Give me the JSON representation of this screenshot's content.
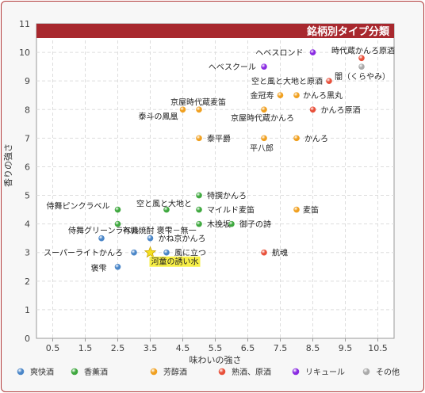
{
  "chart_data": {
    "type": "scatter",
    "title": "銘柄別タイプ分類",
    "xlabel": "味わいの強さ",
    "ylabel": "香りの強さ",
    "xlim": [
      0,
      11
    ],
    "ylim": [
      0,
      11
    ],
    "x_ticks": [
      "0.5",
      "1.5",
      "2.5",
      "3.5",
      "4.5",
      "5.5",
      "6.5",
      "7.5",
      "8.5",
      "9.5",
      "10.5"
    ],
    "y_ticks": [
      "0",
      "1",
      "2",
      "3",
      "4",
      "5",
      "6",
      "7",
      "8",
      "9",
      "10",
      "11"
    ],
    "grid": true,
    "legend_position": "bottom",
    "series": [
      {
        "name": "爽快酒",
        "color": "#4a86c8",
        "points": [
          {
            "x": 2.5,
            "y": 2.5,
            "label": "褒雫"
          },
          {
            "x": 3.0,
            "y": 3.0,
            "label": "スーパーライトかんろ"
          },
          {
            "x": 2.0,
            "y": 3.5,
            "label": "侍舞グリーンラベル"
          },
          {
            "x": 3.5,
            "y": 3.5,
            "label": "かね京かんろ"
          },
          {
            "x": 4.0,
            "y": 3.0,
            "label": "風に立つ"
          }
        ]
      },
      {
        "name": "香薫酒",
        "color": "#3fa83f",
        "points": [
          {
            "x": 2.5,
            "y": 4.5,
            "label": "侍舞ピンクラベル"
          },
          {
            "x": 2.5,
            "y": 4.0,
            "label": "有機焼酎 褒雫－無一"
          },
          {
            "x": 4.0,
            "y": 4.5,
            "label": "空と風と大地と"
          },
          {
            "x": 5.0,
            "y": 5.0,
            "label": "特撰かんろ"
          },
          {
            "x": 5.0,
            "y": 4.5,
            "label": "マイルド麦笛"
          },
          {
            "x": 5.0,
            "y": 4.0,
            "label": "木挽坂"
          },
          {
            "x": 6.0,
            "y": 4.0,
            "label": "御子の詩"
          }
        ]
      },
      {
        "name": "芳醇酒",
        "color": "#f0a020",
        "points": [
          {
            "x": 4.5,
            "y": 8.0,
            "label": "泰斗の鳳凰"
          },
          {
            "x": 5.0,
            "y": 8.0,
            "label": "京屋時代蔵麦笛"
          },
          {
            "x": 7.0,
            "y": 8.0,
            "label": "京屋時代蔵かんろ"
          },
          {
            "x": 7.5,
            "y": 8.5,
            "label": "金冠寿"
          },
          {
            "x": 8.0,
            "y": 8.5,
            "label": "かんろ黒丸"
          },
          {
            "x": 5.0,
            "y": 7.0,
            "label": "泰平爵"
          },
          {
            "x": 7.0,
            "y": 7.0,
            "label": "平八郎"
          },
          {
            "x": 8.0,
            "y": 7.0,
            "label": "かんろ"
          },
          {
            "x": 8.0,
            "y": 4.5,
            "label": "麦笛"
          }
        ]
      },
      {
        "name": "熟酒、原酒",
        "color": "#e8503a",
        "points": [
          {
            "x": 10.0,
            "y": 9.8,
            "label": "時代蔵かんろ原酒"
          },
          {
            "x": 9.0,
            "y": 9.0,
            "label": "空と風と大地と原酒"
          },
          {
            "x": 8.5,
            "y": 8.0,
            "label": "かんろ原酒"
          },
          {
            "x": 7.0,
            "y": 3.0,
            "label": "航魂"
          }
        ]
      },
      {
        "name": "リキュール",
        "color": "#8a2be2",
        "points": [
          {
            "x": 8.5,
            "y": 10.0,
            "label": "ヘベスロンド"
          },
          {
            "x": 7.0,
            "y": 9.5,
            "label": "ヘベスクール"
          }
        ]
      },
      {
        "name": "その他",
        "color": "#aaaaaa",
        "points": [
          {
            "x": 10.0,
            "y": 9.5,
            "label": "闇（くらやみ）"
          }
        ]
      }
    ],
    "highlight": {
      "x": 3.5,
      "y": 3.0,
      "label": "河童の誘い水",
      "color": "#f5e020"
    }
  }
}
